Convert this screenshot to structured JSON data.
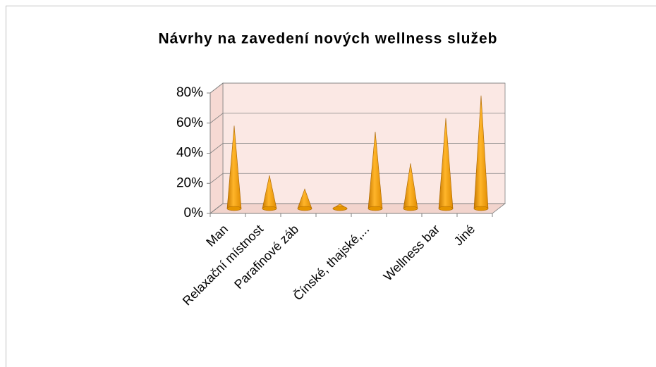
{
  "chart_data": {
    "type": "bar",
    "title": "Návrhy na zavedení nových wellness služeb",
    "categories": [
      "Man",
      "Relaxační místnost",
      "Parafinové záb",
      null,
      "Čínské, thajské,...",
      null,
      "Wellness bar",
      "Jiné"
    ],
    "values": [
      55,
      22,
      13,
      3,
      51,
      30,
      60,
      75
    ],
    "color": "#f5a00f",
    "ylim": [
      0,
      80
    ],
    "yticks": [
      {
        "value": 0,
        "label": "0%"
      },
      {
        "value": 20,
        "label": "20%"
      },
      {
        "value": 40,
        "label": "40%"
      },
      {
        "value": 60,
        "label": "60%"
      },
      {
        "value": 80,
        "label": "80%"
      }
    ],
    "grid": true
  }
}
